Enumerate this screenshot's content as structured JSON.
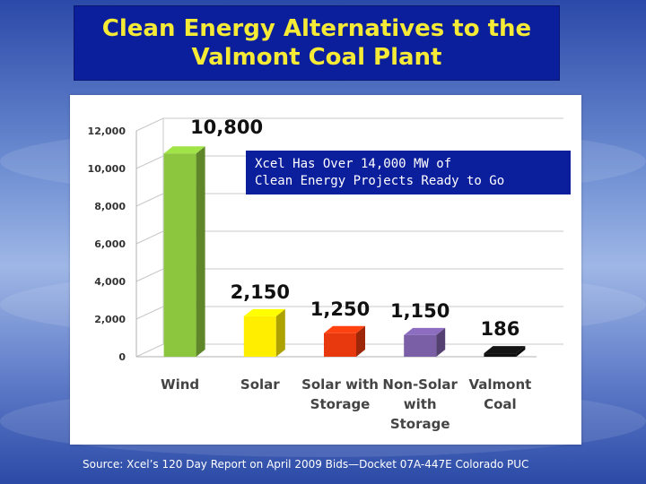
{
  "title": {
    "line1": "Clean Energy Alternatives to the",
    "line2": "Valmont Coal Plant"
  },
  "callout": {
    "line1": "Xcel Has Over 14,000 MW of",
    "line2": "Clean Energy Projects Ready to Go"
  },
  "source": "Source: Xcel’s 120 Day Report on April 2009 Bids—Docket 07A-447E Colorado PUC",
  "colors": {
    "title_bg": "#0b1e9c",
    "title_text": "#f5ea36",
    "callout_bg": "#0b1e9c"
  },
  "chart_data": {
    "type": "bar",
    "categories": [
      [
        "Wind"
      ],
      [
        "Solar"
      ],
      [
        "Solar with",
        "Storage"
      ],
      [
        "Non-Solar",
        "with",
        "Storage"
      ],
      [
        "Valmont",
        "Coal"
      ]
    ],
    "values": [
      10800,
      2150,
      1250,
      1150,
      186
    ],
    "data_labels": [
      "10,800",
      "2,150",
      "1,250",
      "1,150",
      "186"
    ],
    "bar_colors": [
      "#8cc63e",
      "#ffee00",
      "#e8390e",
      "#7b5fa6",
      "#111111"
    ],
    "y_ticks": [
      "0",
      "2,000",
      "4,000",
      "6,000",
      "8,000",
      "10,000",
      "12,000"
    ],
    "ylim": [
      0,
      12000
    ],
    "grid": true,
    "style": "3d-columns"
  }
}
